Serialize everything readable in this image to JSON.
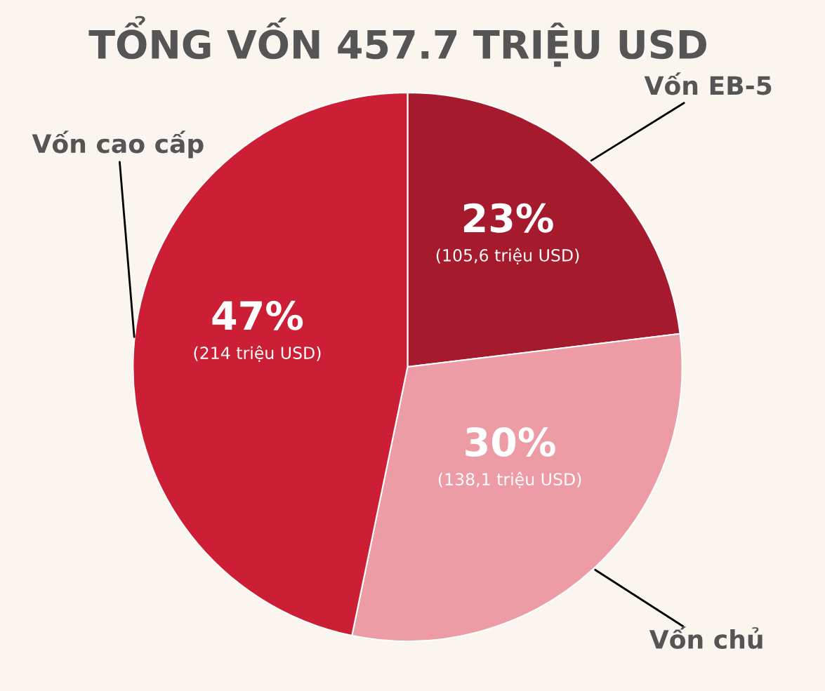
{
  "chart_data": {
    "type": "pie",
    "title": "TỔNG VỐN 457.7 TRIỆU USD",
    "categories": [
      "Vốn EB-5",
      "Vốn chủ",
      "Vốn cao cấp"
    ],
    "values": [
      105.6,
      138.1,
      214
    ],
    "colors": [
      "#a51a2c",
      "#ed9ba5",
      "#cc1f35"
    ],
    "value_labels": [
      "23%\n(105,6 triệu USD)",
      "30%\n(138,1 triệu USD)",
      "47%\n(214 triệu USD)"
    ]
  }
}
